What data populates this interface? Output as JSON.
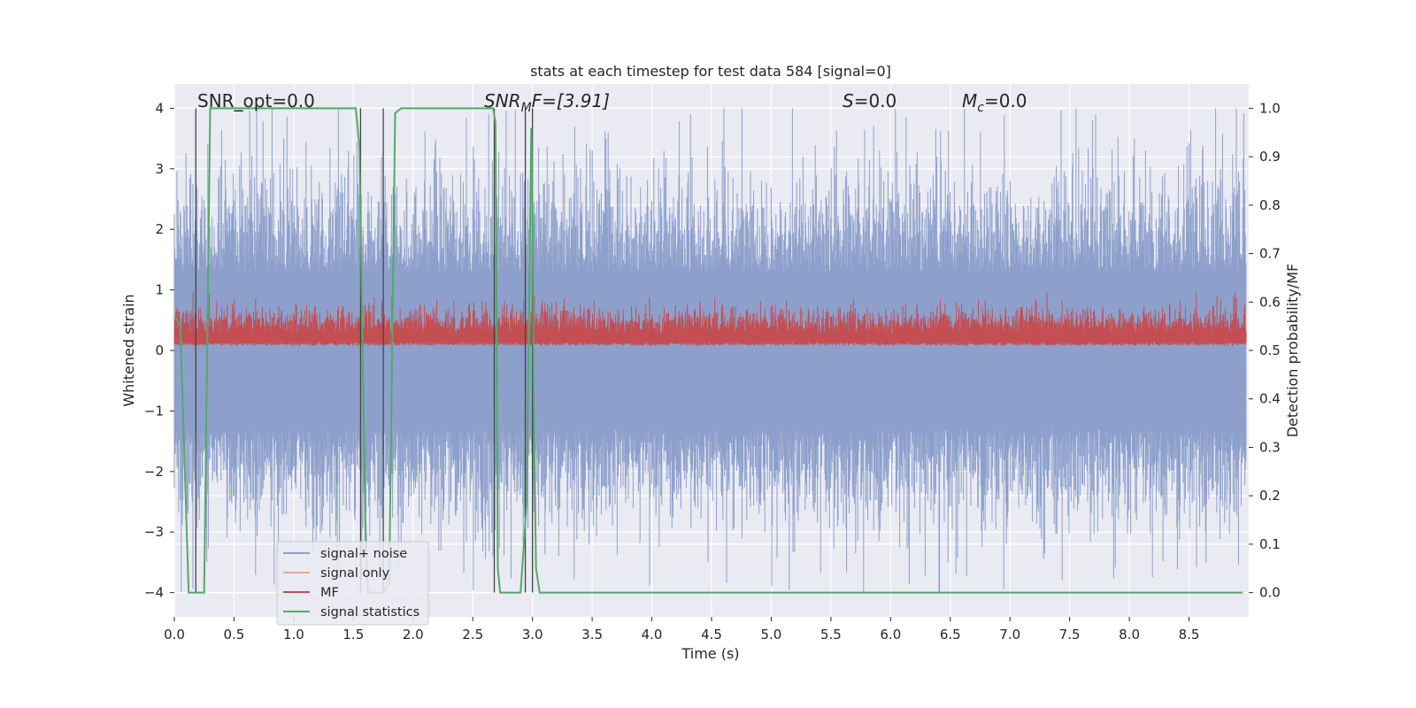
{
  "chart_data": {
    "type": "line",
    "title": "stats at each timestep for test data 584 [signal=0]",
    "xlabel": "Time (s)",
    "ylabel_left": "Whitened strain",
    "ylabel_right": "Detection probability/MF",
    "xlim": [
      0.0,
      9.0
    ],
    "ylim_left": [
      -4.4,
      4.4
    ],
    "ylim_right": [
      -0.05,
      1.05
    ],
    "xticks": [
      "0.0",
      "0.5",
      "1.0",
      "1.5",
      "2.0",
      "2.5",
      "3.0",
      "3.5",
      "4.0",
      "4.5",
      "5.0",
      "5.5",
      "6.0",
      "6.5",
      "7.0",
      "7.5",
      "8.0",
      "8.5"
    ],
    "xtick_values": [
      0.0,
      0.5,
      1.0,
      1.5,
      2.0,
      2.5,
      3.0,
      3.5,
      4.0,
      4.5,
      5.0,
      5.5,
      6.0,
      6.5,
      7.0,
      7.5,
      8.0,
      8.5
    ],
    "yticks_left": [
      "4",
      "3",
      "2",
      "1",
      "0",
      "−1",
      "−2",
      "−3",
      "−4"
    ],
    "ytick_values_left": [
      4,
      3,
      2,
      1,
      0,
      -1,
      -2,
      -3,
      -4
    ],
    "yticks_right": [
      "1.0",
      "0.9",
      "0.8",
      "0.7",
      "0.6",
      "0.5",
      "0.4",
      "0.3",
      "0.2",
      "0.1",
      "0.0"
    ],
    "ytick_values_right": [
      1.0,
      0.9,
      0.8,
      0.7,
      0.6,
      0.5,
      0.4,
      0.3,
      0.2,
      0.1,
      0.0
    ],
    "grid": true,
    "legend_placement": "lower-left",
    "annotations": {
      "snr_opt": "SNR_opt=0.0",
      "snr_mf_main": "SNR",
      "snr_mf_sub": "M",
      "snr_mf_rest": "F=[3.91]",
      "s_main": "S",
      "s_rest": "=0.0",
      "mc_main": "M",
      "mc_sub": "c",
      "mc_rest": "=0.0"
    },
    "series": [
      {
        "name": "signal+ noise",
        "color": "#8da0cb",
        "axis": "left",
        "envelope": {
          "mean": 0.0,
          "typical_peak": 2.3,
          "max_peak": 4.0,
          "min_peak": -4.0
        }
      },
      {
        "name": "signal only",
        "color": "#e8a98a",
        "axis": "left",
        "values": []
      },
      {
        "name": "MF",
        "color": "#c44e52",
        "axis": "right",
        "envelope": {
          "min": 0.51,
          "typical_max": 0.6,
          "max_peak": 0.62
        }
      },
      {
        "name": "signal statistics",
        "color": "#55a868",
        "axis": "right",
        "x": [
          0.0,
          0.05,
          0.12,
          0.17,
          0.2,
          0.25,
          0.3,
          0.5,
          1.0,
          1.5,
          1.52,
          1.55,
          1.6,
          1.62,
          1.7,
          1.75,
          1.8,
          1.85,
          1.9,
          2.0,
          2.5,
          2.6,
          2.67,
          2.69,
          2.71,
          2.73,
          2.8,
          2.85,
          2.9,
          2.95,
          2.97,
          2.99,
          3.0,
          3.01,
          3.03,
          3.06,
          3.1,
          4.0,
          5.0,
          6.0,
          7.0,
          8.0,
          8.95
        ],
        "y": [
          0.57,
          0.55,
          0.0,
          0.0,
          0.0,
          0.0,
          1.0,
          1.0,
          1.0,
          1.0,
          1.0,
          0.92,
          0.15,
          0.0,
          0.0,
          0.0,
          0.02,
          0.99,
          1.0,
          1.0,
          1.0,
          1.0,
          1.0,
          0.97,
          0.05,
          0.0,
          0.0,
          0.0,
          0.0,
          0.18,
          0.55,
          0.96,
          0.8,
          0.4,
          0.05,
          0.0,
          0.0,
          0.0,
          0.0,
          0.0,
          0.0,
          0.0,
          0.0
        ]
      }
    ],
    "vertical_markers": [
      0.18,
      1.56,
      1.75,
      2.68,
      2.94,
      3.0
    ]
  }
}
